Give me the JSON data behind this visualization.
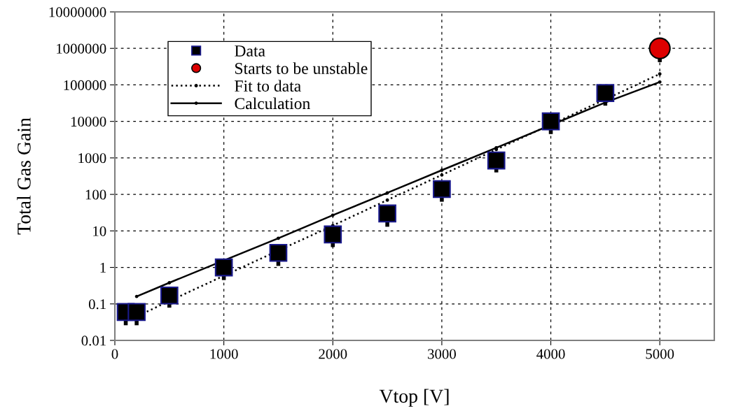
{
  "chart_data": {
    "type": "line",
    "xlabel": "Vtop [V]",
    "ylabel": "Total Gas Gain",
    "log": "y",
    "grid": true,
    "legend": "top left",
    "xlim": [
      0,
      5500
    ],
    "xticks": [
      0,
      1000,
      2000,
      3000,
      4000,
      5000
    ],
    "ylim": [
      0.01,
      10000000
    ],
    "yticks": [
      {
        "value": 0.01,
        "label": "0.01"
      },
      {
        "value": 0.1,
        "label": "0.1"
      },
      {
        "value": 1,
        "label": "1"
      },
      {
        "value": 10,
        "label": "10"
      },
      {
        "value": 100,
        "label": "100"
      },
      {
        "value": 1000,
        "label": "1000"
      },
      {
        "value": 10000,
        "label": "10000"
      },
      {
        "value": 100000,
        "label": "100000"
      },
      {
        "value": 1000000,
        "label": "1000000"
      },
      {
        "value": 10000000,
        "label": "10000000"
      }
    ],
    "series": [
      {
        "name": "Data",
        "type": "scatter",
        "marker": "square",
        "color": "#000000",
        "x": [
          100,
          200,
          500,
          1000,
          1500,
          2000,
          2500,
          3000,
          3500,
          4000,
          4500
        ],
        "values": [
          0.06,
          0.06,
          0.17,
          1,
          2.5,
          8,
          30,
          140,
          850,
          10000,
          60000
        ],
        "errors": [
          [
            0.026,
            0.06
          ],
          [
            0.026,
            0.06
          ],
          [
            0.079,
            0.17
          ],
          [
            0.45,
            1
          ],
          [
            1.1,
            2.5
          ],
          [
            3.6,
            8
          ],
          [
            13,
            30
          ],
          [
            63,
            140
          ],
          [
            400,
            850
          ],
          [
            4500,
            10000
          ],
          [
            27000,
            60000
          ]
        ]
      },
      {
        "name": "Starts to be unstable",
        "type": "scatter",
        "marker": "circle",
        "color": "#dd0000",
        "x": [
          5000
        ],
        "values": [
          1000000
        ],
        "errors": [
          [
            420000,
            1000000
          ]
        ]
      },
      {
        "name": "Fit to data",
        "marker": "circle",
        "line_style": "dotted",
        "color": "#000000",
        "x": [
          100,
          200,
          500,
          1000,
          1500,
          2000,
          2500,
          3000,
          3500,
          4000,
          4500,
          5000
        ],
        "values": [
          0.033,
          0.045,
          0.12,
          0.59,
          2.9,
          14,
          70,
          340,
          1700,
          8200,
          40000,
          200000
        ]
      },
      {
        "name": "Calculation",
        "marker": "circle",
        "line_style": "solid",
        "color": "#000000",
        "x": [
          200,
          500,
          1000,
          1500,
          2000,
          2500,
          3000,
          3500,
          4000,
          4500,
          5000
        ],
        "values": [
          0.16,
          0.38,
          1.55,
          6.3,
          27,
          110,
          460,
          1900,
          7900,
          33000,
          120000
        ]
      }
    ]
  }
}
